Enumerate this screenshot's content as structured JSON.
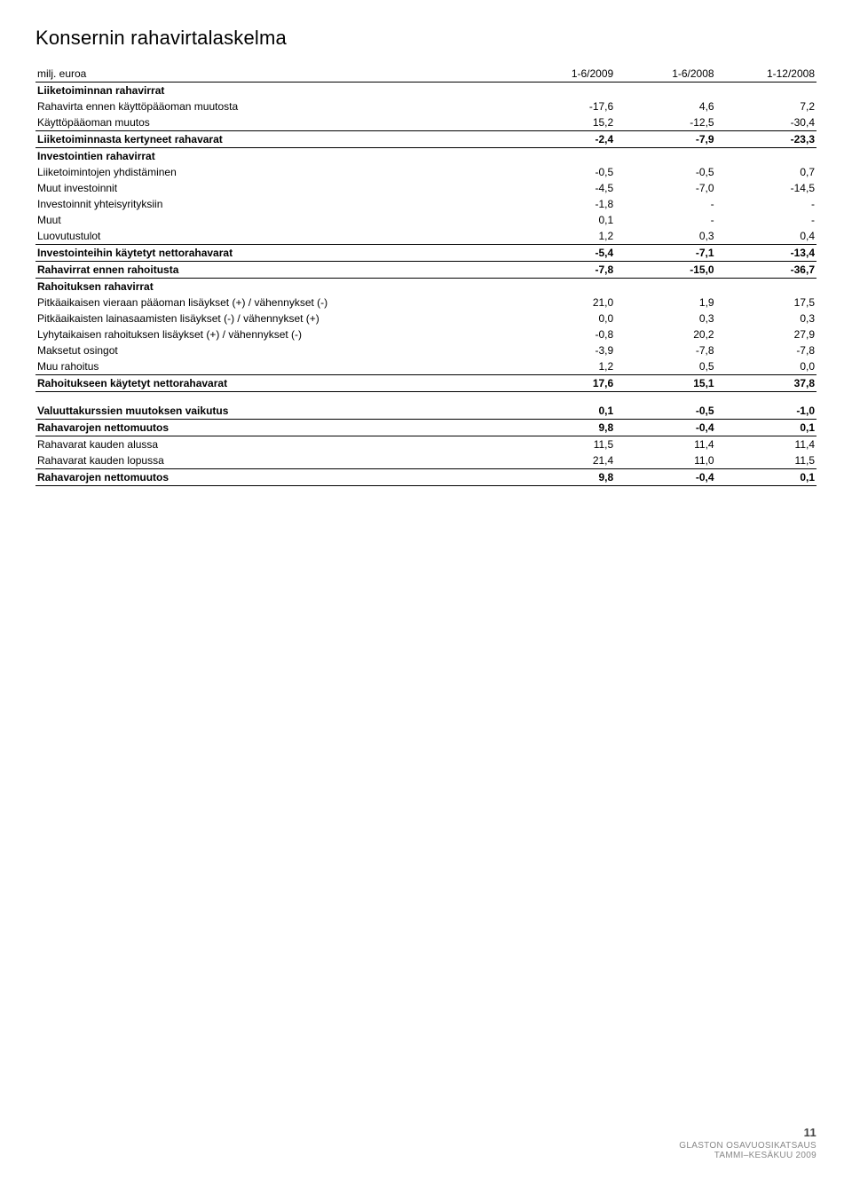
{
  "title": "Konsernin rahavirtalaskelma",
  "unit_label": "milj. euroa",
  "cols": [
    "1-6/2009",
    "1-6/2008",
    "1-12/2008"
  ],
  "sections": [
    {
      "header": "Liiketoiminnan rahavirrat",
      "rows": [
        {
          "label": "Rahavirta ennen käyttöpääoman muutosta",
          "v": [
            "-17,6",
            "4,6",
            "7,2"
          ]
        },
        {
          "label": "Käyttöpääoman muutos",
          "v": [
            "15,2",
            "-12,5",
            "-30,4"
          ]
        }
      ],
      "total": {
        "label": "Liiketoiminnasta kertyneet rahavarat",
        "v": [
          "-2,4",
          "-7,9",
          "-23,3"
        ]
      }
    },
    {
      "header": "Investointien rahavirrat",
      "rows": [
        {
          "label": "Liiketoimintojen yhdistäminen",
          "v": [
            "-0,5",
            "-0,5",
            "0,7"
          ]
        },
        {
          "label": "Muut investoinnit",
          "v": [
            "-4,5",
            "-7,0",
            "-14,5"
          ]
        },
        {
          "label": "Investoinnit yhteisyrityksiin",
          "v": [
            "-1,8",
            "-",
            "-"
          ]
        },
        {
          "label": "Muut",
          "v": [
            "0,1",
            "-",
            "-"
          ]
        },
        {
          "label": "Luovutustulot",
          "v": [
            "1,2",
            "0,3",
            "0,4"
          ]
        }
      ],
      "total": {
        "label": "Investointeihin käytetyt nettorahavarat",
        "v": [
          "-5,4",
          "-7,1",
          "-13,4"
        ]
      }
    }
  ],
  "pretotal": {
    "label": "Rahavirrat ennen rahoitusta",
    "v": [
      "-7,8",
      "-15,0",
      "-36,7"
    ]
  },
  "fin_section": {
    "header": "Rahoituksen rahavirrat",
    "rows": [
      {
        "label": "Pitkäaikaisen vieraan pääoman lisäykset (+) / vähennykset (-)",
        "v": [
          "21,0",
          "1,9",
          "17,5"
        ]
      },
      {
        "label": "Pitkäaikaisten lainasaamisten lisäykset (-) / vähennykset (+)",
        "v": [
          "0,0",
          "0,3",
          "0,3"
        ]
      },
      {
        "label": "Lyhytaikaisen rahoituksen lisäykset (+) / vähennykset (-)",
        "v": [
          "-0,8",
          "20,2",
          "27,9"
        ]
      },
      {
        "label": "Maksetut osingot",
        "v": [
          "-3,9",
          "-7,8",
          "-7,8"
        ]
      },
      {
        "label": "Muu rahoitus",
        "v": [
          "1,2",
          "0,5",
          "0,0"
        ]
      }
    ],
    "total": {
      "label": "Rahoitukseen käytetyt nettorahavarat",
      "v": [
        "17,6",
        "15,1",
        "37,8"
      ]
    }
  },
  "summary": [
    {
      "label": "Valuuttakurssien muutoksen vaikutus",
      "v": [
        "0,1",
        "-0,5",
        "-1,0"
      ],
      "bold": true
    },
    {
      "label": "Rahavarojen nettomuutos",
      "v": [
        "9,8",
        "-0,4",
        "0,1"
      ],
      "bold": true,
      "line": true
    },
    {
      "label": "Rahavarat kauden alussa",
      "v": [
        "11,5",
        "11,4",
        "11,4"
      ],
      "bold": false
    },
    {
      "label": "Rahavarat kauden lopussa",
      "v": [
        "21,4",
        "11,0",
        "11,5"
      ],
      "bold": false
    },
    {
      "label": "Rahavarojen nettomuutos",
      "v": [
        "9,8",
        "-0,4",
        "0,1"
      ],
      "bold": true,
      "dbl": true
    }
  ],
  "footer": {
    "page": "11",
    "line1": "GLASTON OSAVUOSIKATSAUS",
    "line2": "TAMMI–KESÄKUU 2009"
  }
}
